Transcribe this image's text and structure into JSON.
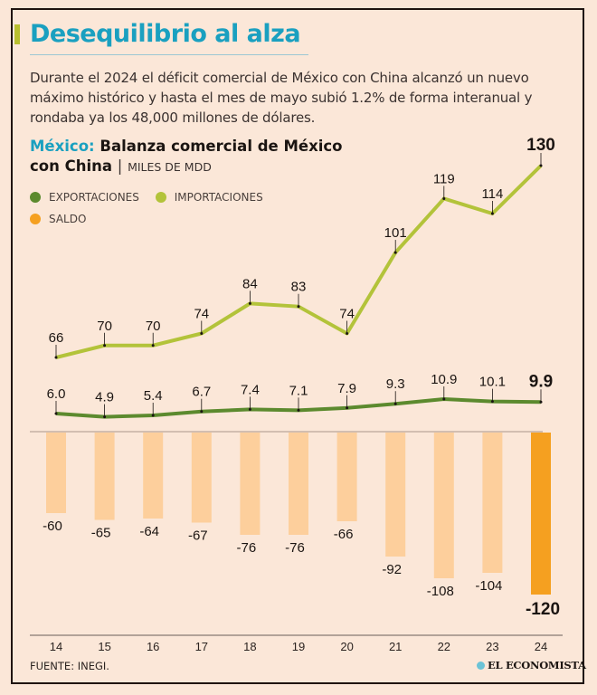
{
  "header": {
    "title": "Desequilibrio al alza",
    "lead": "Durante el 2024 el déficit comercial de México con China alcanzó un nuevo máximo histórico y hasta el mes de mayo subió 1.2% de forma interanual y rondaba ya los 48,000 millones de dólares."
  },
  "chart_header": {
    "country": "México:",
    "title_a": "Balanza comercial de México",
    "title_b": "con China",
    "separator": "|",
    "unit": "MILES DE MDD"
  },
  "legend": [
    {
      "label": "EXPORTACIONES",
      "color": "#5c8a2e"
    },
    {
      "label": "IMPORTACIONES",
      "color": "#b3c33a"
    },
    {
      "label": "SALDO",
      "color": "#f5a020"
    }
  ],
  "footer": {
    "source": "FUENTE: INEGI.",
    "brand": "EL ECONOMISTA"
  },
  "colors": {
    "exports": "#5c8a2e",
    "imports": "#b3c33a",
    "balance": "#fdcf9c",
    "balance_highlight": "#f5a020",
    "title": "#1aa0c0"
  },
  "chart_data": {
    "type": "line+bar",
    "title": "México: Balanza comercial de México con China",
    "unit": "MILES DE MDD",
    "categories": [
      "14",
      "15",
      "16",
      "17",
      "18",
      "19",
      "20",
      "21",
      "22",
      "23",
      "24"
    ],
    "series": [
      {
        "name": "IMPORTACIONES",
        "type": "line",
        "values": [
          66,
          70,
          70,
          74,
          84,
          83,
          74,
          101,
          119,
          114,
          130
        ],
        "labels": [
          "66",
          "70",
          "70",
          "74",
          "84",
          "83",
          "74",
          "101",
          "119",
          "114",
          "130"
        ]
      },
      {
        "name": "EXPORTACIONES",
        "type": "line",
        "values": [
          6.0,
          4.9,
          5.4,
          6.7,
          7.4,
          7.1,
          7.9,
          9.3,
          10.9,
          10.1,
          9.9
        ],
        "labels": [
          "6.0",
          "4.9",
          "5.4",
          "6.7",
          "7.4",
          "7.1",
          "7.9",
          "9.3",
          "10.9",
          "10.1",
          "9.9"
        ]
      },
      {
        "name": "SALDO",
        "type": "bar",
        "values": [
          -60,
          -65,
          -64,
          -67,
          -76,
          -76,
          -66,
          -92,
          -108,
          -104,
          -120
        ],
        "labels": [
          "-60",
          "-65",
          "-64",
          "-67",
          "-76",
          "-76",
          "-66",
          "-92",
          "-108",
          "-104",
          "-120"
        ]
      }
    ],
    "highlight_last": true,
    "grid": false,
    "legend_position": "top-left",
    "xlabel": "",
    "ylabel": ""
  }
}
